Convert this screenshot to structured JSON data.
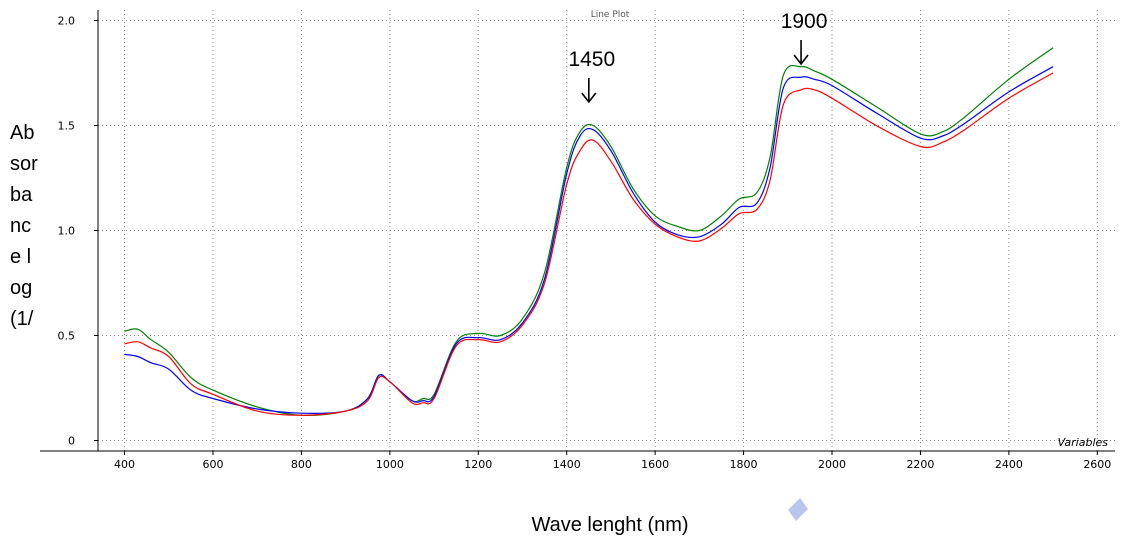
{
  "chart_data": {
    "type": "line",
    "title": "Line Plot",
    "xlabel": "Wave lenght (nm)",
    "ylabel": "Absorbance log (1/",
    "x_axis_tag": "Variables",
    "xlim": [
      340,
      2640
    ],
    "ylim": [
      -0.05,
      2.05
    ],
    "xticks": [
      "400",
      "600",
      "800",
      "1000",
      "1200",
      "1400",
      "1600",
      "1800",
      "2000",
      "2200",
      "2400",
      "2600"
    ],
    "yticks": [
      "0",
      "0.5",
      "1.0",
      "1.5",
      "2.0"
    ],
    "grid": true,
    "annotations": [
      {
        "text": "1450",
        "x": 1450
      },
      {
        "text": "1900",
        "x": 1930
      }
    ],
    "series": [
      {
        "color": "#008000",
        "x": [
          400,
          430,
          460,
          500,
          550,
          600,
          700,
          800,
          900,
          950,
          975,
          1000,
          1050,
          1075,
          1100,
          1150,
          1200,
          1250,
          1300,
          1350,
          1400,
          1430,
          1460,
          1500,
          1550,
          1600,
          1650,
          1700,
          1750,
          1790,
          1830,
          1860,
          1890,
          1930,
          1960,
          2000,
          2100,
          2200,
          2250,
          2300,
          2400,
          2500
        ],
        "y": [
          0.52,
          0.53,
          0.48,
          0.42,
          0.3,
          0.24,
          0.16,
          0.12,
          0.14,
          0.2,
          0.31,
          0.28,
          0.19,
          0.2,
          0.22,
          0.47,
          0.51,
          0.5,
          0.58,
          0.8,
          1.3,
          1.47,
          1.5,
          1.4,
          1.2,
          1.07,
          1.02,
          1.0,
          1.07,
          1.15,
          1.18,
          1.35,
          1.74,
          1.78,
          1.76,
          1.72,
          1.59,
          1.46,
          1.47,
          1.54,
          1.72,
          1.87
        ]
      },
      {
        "color": "#0000ff",
        "x": [
          400,
          430,
          460,
          500,
          550,
          600,
          700,
          800,
          900,
          950,
          975,
          1000,
          1050,
          1075,
          1100,
          1150,
          1200,
          1250,
          1300,
          1350,
          1400,
          1430,
          1460,
          1500,
          1550,
          1600,
          1650,
          1700,
          1750,
          1790,
          1830,
          1860,
          1890,
          1930,
          1960,
          2000,
          2100,
          2200,
          2250,
          2300,
          2400,
          2500
        ],
        "y": [
          0.41,
          0.4,
          0.37,
          0.34,
          0.24,
          0.2,
          0.15,
          0.13,
          0.14,
          0.2,
          0.31,
          0.28,
          0.19,
          0.19,
          0.21,
          0.46,
          0.49,
          0.48,
          0.56,
          0.77,
          1.27,
          1.45,
          1.48,
          1.38,
          1.18,
          1.04,
          0.98,
          0.97,
          1.03,
          1.11,
          1.13,
          1.3,
          1.68,
          1.73,
          1.72,
          1.69,
          1.56,
          1.44,
          1.45,
          1.51,
          1.66,
          1.78
        ]
      },
      {
        "color": "#ff0000",
        "x": [
          400,
          430,
          460,
          500,
          550,
          600,
          700,
          800,
          900,
          950,
          975,
          1000,
          1050,
          1075,
          1100,
          1150,
          1200,
          1250,
          1300,
          1350,
          1400,
          1430,
          1460,
          1500,
          1550,
          1600,
          1650,
          1700,
          1750,
          1790,
          1830,
          1860,
          1890,
          1930,
          1960,
          2000,
          2100,
          2200,
          2250,
          2300,
          2400,
          2500
        ],
        "y": [
          0.46,
          0.47,
          0.44,
          0.4,
          0.27,
          0.22,
          0.14,
          0.12,
          0.14,
          0.19,
          0.3,
          0.28,
          0.18,
          0.18,
          0.2,
          0.45,
          0.48,
          0.47,
          0.55,
          0.75,
          1.22,
          1.38,
          1.43,
          1.33,
          1.15,
          1.03,
          0.97,
          0.95,
          1.01,
          1.08,
          1.1,
          1.24,
          1.6,
          1.67,
          1.67,
          1.63,
          1.5,
          1.4,
          1.42,
          1.48,
          1.63,
          1.75
        ]
      }
    ]
  }
}
